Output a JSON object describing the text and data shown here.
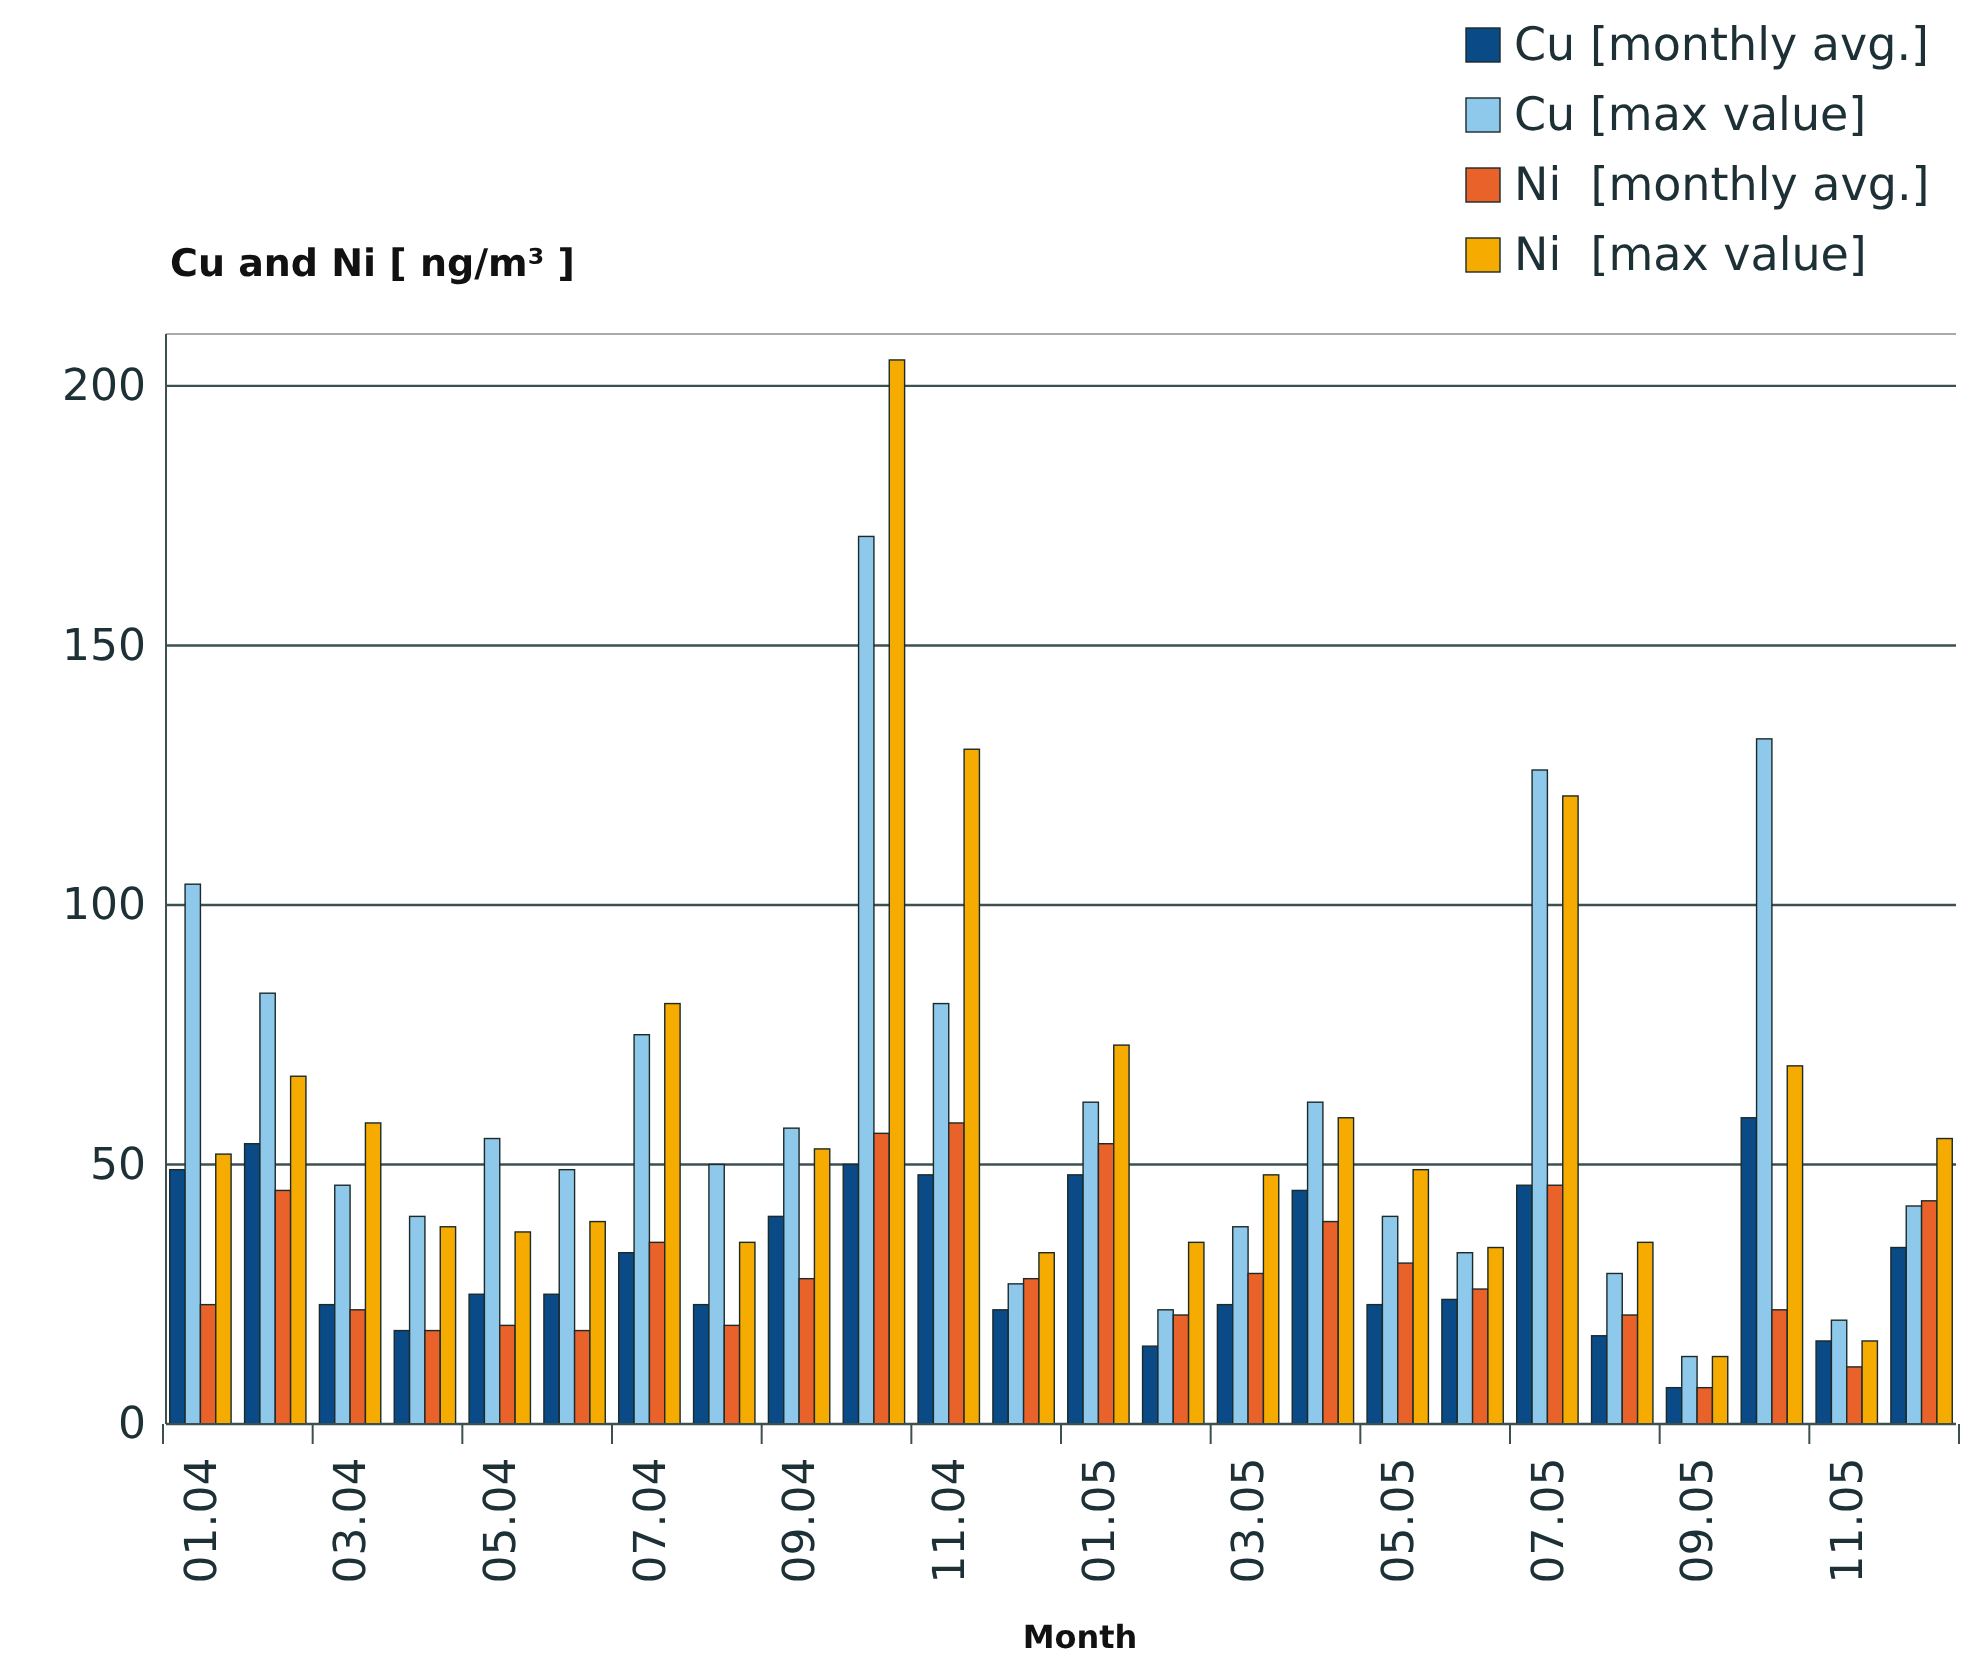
{
  "chart_data": {
    "type": "bar",
    "title": "Cu and Ni [ ng/m³ ]",
    "xlabel": "Month",
    "categories": [
      "01.04",
      null,
      "03.04",
      null,
      "05.04",
      null,
      "07.04",
      null,
      "09.04",
      null,
      "11.04",
      null,
      "01.05",
      null,
      "03.05",
      null,
      "05.05",
      null,
      "07.05",
      null,
      "09.05",
      null,
      "11.05",
      null
    ],
    "series": [
      {
        "name": "Cu [monthly avg.]",
        "color": "#0a4a86",
        "values": [
          49,
          54,
          23,
          18,
          25,
          25,
          33,
          23,
          40,
          50,
          48,
          22,
          48,
          15,
          23,
          45,
          23,
          24,
          46,
          17,
          7,
          59,
          16,
          34
        ]
      },
      {
        "name": "Cu [max value]",
        "color": "#8ec8ea",
        "values": [
          104,
          83,
          46,
          40,
          55,
          49,
          75,
          50,
          57,
          171,
          81,
          27,
          62,
          22,
          38,
          62,
          40,
          33,
          126,
          29,
          13,
          132,
          20,
          42
        ]
      },
      {
        "name": "Ni  [monthly avg.]",
        "color": "#e8622a",
        "values": [
          23,
          45,
          22,
          18,
          19,
          18,
          35,
          19,
          28,
          56,
          58,
          28,
          54,
          21,
          29,
          39,
          31,
          26,
          46,
          21,
          7,
          22,
          11,
          43
        ]
      },
      {
        "name": "Ni  [max value]",
        "color": "#f5ab00",
        "values": [
          52,
          67,
          58,
          38,
          37,
          39,
          81,
          35,
          53,
          205,
          130,
          33,
          73,
          35,
          48,
          59,
          49,
          34,
          121,
          35,
          13,
          69,
          16,
          55
        ]
      }
    ],
    "ylim": [
      0,
      210
    ],
    "yticks": [
      0,
      50,
      100,
      150,
      200
    ],
    "grid": "y",
    "legend": "top right"
  }
}
